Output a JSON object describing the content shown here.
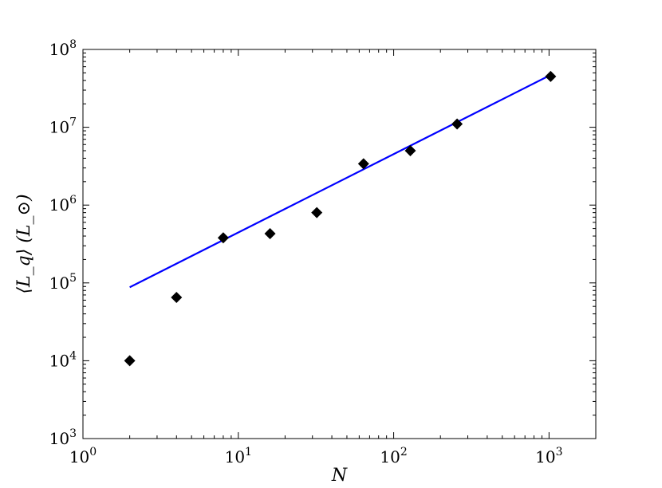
{
  "chart_data": {
    "type": "scatter",
    "title": "",
    "xlabel": "N",
    "ylabel": "⟨L_q⟩ (L_⊙)",
    "xscale": "log",
    "yscale": "log",
    "xlim": [
      1,
      2000
    ],
    "ylim": [
      1000,
      100000000
    ],
    "x_ticks": [
      {
        "value": 1,
        "base": "10",
        "exp": "0"
      },
      {
        "value": 10,
        "base": "10",
        "exp": "1"
      },
      {
        "value": 100,
        "base": "10",
        "exp": "2"
      },
      {
        "value": 1000,
        "base": "10",
        "exp": "3"
      }
    ],
    "y_ticks": [
      {
        "value": 1000,
        "base": "10",
        "exp": "3"
      },
      {
        "value": 10000,
        "base": "10",
        "exp": "4"
      },
      {
        "value": 100000,
        "base": "10",
        "exp": "5"
      },
      {
        "value": 1000000,
        "base": "10",
        "exp": "6"
      },
      {
        "value": 10000000,
        "base": "10",
        "exp": "7"
      },
      {
        "value": 100000000,
        "base": "10",
        "exp": "8"
      }
    ],
    "grid": false,
    "series": [
      {
        "type": "scatter",
        "marker": "diamond",
        "color": "#000000",
        "x": [
          2,
          4,
          8,
          16,
          32,
          64,
          128,
          256,
          1024
        ],
        "y": [
          10000,
          65000,
          380000,
          430000,
          800000,
          3400000,
          5000000,
          11000000,
          45000000
        ]
      },
      {
        "type": "line",
        "color": "#0000ff",
        "x": [
          2,
          1024
        ],
        "y": [
          88000,
          47000000
        ]
      }
    ]
  }
}
